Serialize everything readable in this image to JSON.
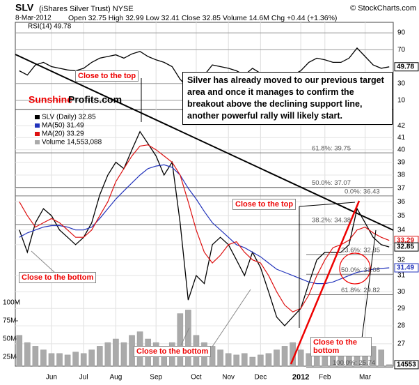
{
  "header": {
    "symbol": "SLV",
    "name": "(iShares Silver Trust) NYSE",
    "source": "© StockCharts.com",
    "date": "8-Mar-2012",
    "quote": "Open 32.75 High 32.99 Low 32.41 Close 32.85 Volume 14.6M Chg +0.44 (+1.36%)"
  },
  "brand": {
    "first": "Sunshine",
    "second": "Profits.com"
  },
  "note": "Silver has already moved to our previous target area and once it manages to confirm the breakout above the declining support line, another powerful rally will likely start.",
  "callouts": [
    "Close to the top",
    "Close to the top",
    "Close to the bottom",
    "Close to the bottom",
    "Close to the bottom"
  ],
  "chart_data": [
    {
      "type": "line",
      "ylim": [
        0,
        100
      ],
      "yticks": [
        10,
        30,
        70,
        90
      ],
      "series": [
        {
          "name": "RSI(14) 49.78",
          "color": "#000000",
          "values": [
            45,
            40,
            52,
            55,
            50,
            48,
            46,
            45,
            48,
            55,
            60,
            62,
            64,
            60,
            65,
            68,
            62,
            58,
            55,
            50,
            35,
            25,
            38,
            40,
            52,
            50,
            48,
            45,
            40,
            48,
            42,
            38,
            35,
            36,
            40,
            45,
            55,
            60,
            58,
            55,
            55,
            60,
            72,
            62,
            52,
            48,
            49.78
          ]
        }
      ],
      "value_tags": [
        {
          "value": 49.78,
          "label": "49.78"
        }
      ]
    },
    {
      "type": "line",
      "log": true,
      "ylim": [
        25.8,
        43.4
      ],
      "yticks": [
        27,
        28,
        29,
        30,
        31,
        32,
        33,
        34,
        35,
        36,
        37,
        38,
        39,
        40,
        41,
        42
      ],
      "categories": [
        null,
        null,
        null,
        null,
        "Jun",
        null,
        null,
        null,
        "Jul",
        null,
        null,
        null,
        "Aug",
        null,
        null,
        null,
        null,
        "Sep",
        null,
        null,
        null,
        null,
        "Oct",
        null,
        null,
        null,
        "Nov",
        null,
        null,
        null,
        "Dec",
        null,
        null,
        null,
        null,
        "2012",
        null,
        null,
        "Feb",
        null,
        null,
        null,
        null,
        "Mar",
        null,
        null,
        null
      ],
      "series": [
        {
          "name": "SLV (Daily) 32.85",
          "color": "#000000",
          "values": [
            34.0,
            32.5,
            34.5,
            35.5,
            35.0,
            34.0,
            33.5,
            33.0,
            33.5,
            34.5,
            36.5,
            38.0,
            39.0,
            38.5,
            40.0,
            41.5,
            40.5,
            39.5,
            38.0,
            39.0,
            34.5,
            29.5,
            31.0,
            30.5,
            33.0,
            33.5,
            33.0,
            32.0,
            31.0,
            32.5,
            31.5,
            30.0,
            28.5,
            28.0,
            28.5,
            29.0,
            30.5,
            32.0,
            32.5,
            32.5,
            32.5,
            33.0,
            35.5,
            34.5,
            33.5,
            33.0,
            32.85
          ]
        },
        {
          "name": "MA(50) 31.49",
          "color": "#2233bb",
          "values": [
            33.5,
            33.8,
            34.0,
            34.2,
            34.3,
            34.3,
            34.2,
            34.0,
            34.0,
            34.2,
            34.8,
            35.5,
            36.2,
            36.8,
            37.4,
            38.0,
            38.5,
            38.7,
            38.8,
            38.6,
            38.0,
            37.0,
            36.2,
            35.3,
            34.5,
            34.0,
            33.5,
            33.0,
            32.8,
            32.5,
            32.2,
            31.8,
            31.4,
            31.2,
            31.0,
            30.8,
            30.6,
            30.5,
            30.5,
            30.6,
            30.8,
            31.0,
            31.2,
            31.3,
            31.4,
            31.45,
            31.49
          ]
        },
        {
          "name": "MA(20) 33.29",
          "color": "#dd1111",
          "values": [
            36.0,
            35.0,
            34.2,
            34.5,
            34.8,
            34.5,
            34.0,
            33.5,
            33.5,
            34.0,
            35.0,
            36.0,
            37.5,
            38.5,
            39.5,
            40.3,
            40.4,
            40.0,
            39.5,
            39.0,
            38.0,
            36.0,
            34.0,
            32.5,
            31.8,
            32.3,
            33.0,
            33.2,
            32.5,
            32.0,
            31.8,
            31.0,
            30.0,
            29.2,
            28.8,
            29.0,
            29.8,
            31.0,
            32.0,
            32.8,
            33.0,
            33.3,
            34.0,
            34.2,
            33.8,
            33.5,
            33.29
          ]
        }
      ],
      "fib_levels": [
        {
          "value": 39.75,
          "label": "61.8%: 39.75"
        },
        {
          "value": 37.07,
          "label": "50.0%: 37.07"
        },
        {
          "value": 36.43,
          "label": "0.0%: 36.43"
        },
        {
          "value": 34.38,
          "label": "38.2%: 34.38"
        },
        {
          "value": 32.35,
          "label": "23.6%: 32.35"
        },
        {
          "value": 31.08,
          "label": "50.0%: 31.08"
        },
        {
          "value": 29.82,
          "label": "61.8%: 29.82"
        },
        {
          "value": 25.74,
          "label": "100.0%: 25.74"
        }
      ],
      "value_tags": [
        {
          "value": 33.29,
          "label": "33.29",
          "color": "#dd1111"
        },
        {
          "value": 32.85,
          "label": "32.85",
          "color": "#000000"
        },
        {
          "value": 31.49,
          "label": "31.49",
          "color": "#2233bb"
        }
      ]
    },
    {
      "type": "bar",
      "ylim": [
        12.5,
        137.5
      ],
      "yticks": [
        {
          "value": 25,
          "label": "25M"
        },
        {
          "value": 50,
          "label": "50M"
        },
        {
          "value": 75,
          "label": "75M"
        },
        {
          "value": 100,
          "label": "100M"
        }
      ],
      "series": [
        {
          "name": "Volume 14,553,088",
          "color": "#aaaaaa",
          "values": [
            55,
            45,
            40,
            35,
            30,
            30,
            28,
            32,
            30,
            35,
            40,
            45,
            50,
            45,
            55,
            60,
            50,
            45,
            40,
            45,
            85,
            90,
            55,
            45,
            40,
            35,
            30,
            28,
            30,
            25,
            28,
            30,
            35,
            40,
            45,
            35,
            30,
            32,
            30,
            28,
            30,
            35,
            45,
            40,
            40,
            35,
            14.553088
          ]
        }
      ],
      "value_tags": [
        {
          "value": 14.553088,
          "label": "14553"
        }
      ]
    }
  ]
}
